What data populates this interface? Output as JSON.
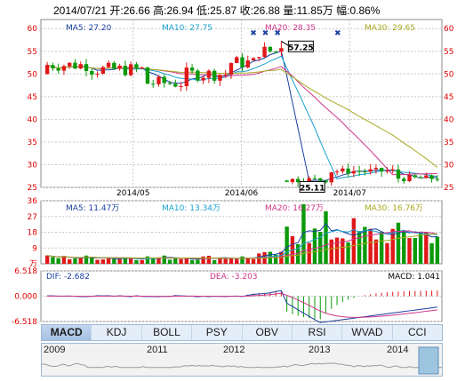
{
  "header": {
    "date": "2014/07/21",
    "open": "开:26.66",
    "high": "高:26.94",
    "low": "低:25.87",
    "close": "收:26.88",
    "volume": "量:11.85万",
    "change": "幅:0.86%"
  },
  "price_panel": {
    "ma5": "MA5: 27.20",
    "ma10": "MA10: 27.75",
    "ma20": "MA20: 28.35",
    "ma30": "MA30: 29.65",
    "y_ticks": [
      "60",
      "55",
      "50",
      "45",
      "40",
      "35",
      "30",
      "25"
    ],
    "x_ticks": [
      "2014/05",
      "2014/06",
      "2014/07"
    ],
    "high_label": "57.25",
    "low_label": "25.11"
  },
  "volume_panel": {
    "ma5": "MA5: 11.47万",
    "ma10": "MA10: 13.34万",
    "ma20": "MA20: 16.27万",
    "ma30": "MA30: 16.76万",
    "y_ticks": [
      "36",
      "27",
      "18",
      "9"
    ],
    "unit": "万"
  },
  "macd_panel": {
    "dif": "DIF: -2.682",
    "dea": "DEA: -3.203",
    "macd": "MACD: 1.041",
    "y_ticks": [
      "6.518",
      "0.000",
      "-6.518"
    ]
  },
  "tabs": [
    "MACD",
    "KDJ",
    "BOLL",
    "PSY",
    "OBV",
    "RSI",
    "WVAD",
    "CCI"
  ],
  "active_tab": "MACD",
  "navigator": {
    "years": [
      "2009",
      "2011",
      "2012",
      "2013",
      "2014"
    ]
  },
  "colors": {
    "up": "#e01818",
    "down": "#0a9a0a",
    "ma5": "#1a3fa0",
    "ma10": "#19a0d0",
    "ma20": "#d0358a",
    "ma30": "#a8a820",
    "axis": "#e00000",
    "grid": "#c8c8c8"
  },
  "chart_data": {
    "type": "candlestick",
    "price_ylim": [
      25,
      62
    ],
    "volume_ylim": [
      0,
      36
    ],
    "macd_ylim": [
      -6.518,
      6.518
    ],
    "phases": [
      {
        "name": "pre-split",
        "days": 43,
        "price_range": [
          47,
          57.25
        ]
      },
      {
        "name": "post-split",
        "days": 28,
        "price_range": [
          25.11,
          30
        ]
      }
    ],
    "period_high": 57.25,
    "period_low": 25.11,
    "last_close": 26.88
  }
}
